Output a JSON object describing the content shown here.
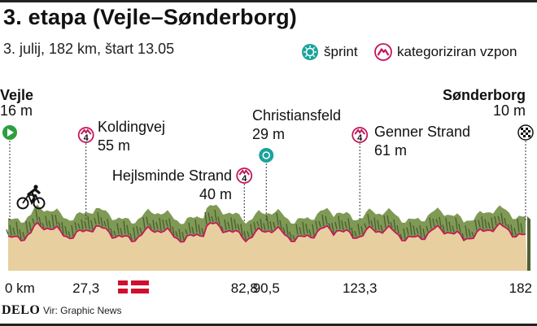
{
  "header": {
    "title": "3. etapa (Vejle–Sønderborg)",
    "subtitle": "3. julij, 182 km, štart 13.05"
  },
  "legend": {
    "sprint_label": "šprint",
    "climb_label": "kategoriziran vzpon"
  },
  "footer": {
    "logo": "DELO",
    "source": "Vir: Graphic News"
  },
  "colors": {
    "terrain_top": "#7f9a55",
    "terrain_side": "#4e5f34",
    "ground": "#e8cfa0",
    "route_line": "#c2185b",
    "sprint": "#1aa39a",
    "climb": "#c2185b",
    "start": "#2e9e3e"
  },
  "flag_icon": "denmark-flag-icon",
  "chart_data": {
    "type": "area",
    "x_range": [
      0,
      182
    ],
    "x_unit": "km",
    "ticks": [
      {
        "km": 0,
        "label": "0 km"
      },
      {
        "km": 27.3,
        "label": "27,3"
      },
      {
        "km": 82.8,
        "label": "82,8"
      },
      {
        "km": 90.5,
        "label": "90,5"
      },
      {
        "km": 123.3,
        "label": "123,3"
      },
      {
        "km": 182,
        "label": "182"
      }
    ],
    "points": [
      {
        "km": 0,
        "name": "Vejle",
        "elevation": "16 m",
        "marker": "start"
      },
      {
        "km": 27.3,
        "name": "Koldingvej",
        "elevation": "55 m",
        "marker": "climb",
        "category": "4"
      },
      {
        "km": 82.8,
        "name": "Hejlsminde Strand",
        "elevation": "40 m",
        "marker": "climb",
        "category": "4"
      },
      {
        "km": 90.5,
        "name": "Christiansfeld",
        "elevation": "29 m",
        "marker": "sprint"
      },
      {
        "km": 123.3,
        "name": "Genner Strand",
        "elevation": "61 m",
        "marker": "climb",
        "category": "4"
      },
      {
        "km": 182,
        "name": "Sønderborg",
        "elevation": "10 m",
        "marker": "finish"
      }
    ]
  }
}
